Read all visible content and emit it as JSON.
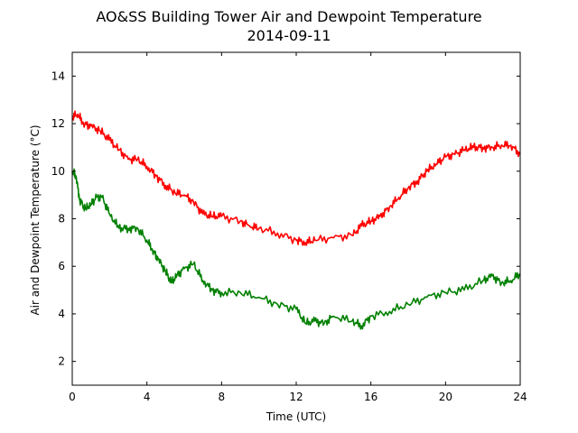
{
  "chart_data": {
    "type": "line",
    "title": "AO&SS Building Tower Air and Dewpoint Temperature",
    "subtitle": "2014-09-11",
    "xlabel": "Time (UTC)",
    "ylabel": "Air and Dewpoint Temperature (°C)",
    "xlim": [
      0,
      24
    ],
    "ylim": [
      1,
      15
    ],
    "xticks": [
      0,
      4,
      8,
      12,
      16,
      20,
      24
    ],
    "yticks": [
      2,
      4,
      6,
      8,
      10,
      12,
      14
    ],
    "grid": false,
    "legend": "none",
    "series": [
      {
        "color": "#ff0000",
        "x": [
          0,
          0.3,
          0.6,
          1,
          1.5,
          2,
          2.5,
          3,
          3.5,
          4,
          4.5,
          5,
          5.5,
          6,
          6.5,
          7,
          7.5,
          8,
          9,
          9.5,
          10,
          11,
          12,
          12.5,
          13,
          14,
          15,
          15.5,
          16,
          16.5,
          17,
          17.5,
          18,
          18.5,
          19,
          19.5,
          20,
          20.5,
          21,
          21.5,
          22,
          22.5,
          23,
          23.5,
          24
        ],
        "y": [
          12.3,
          12.4,
          12.0,
          11.9,
          11.7,
          11.3,
          10.9,
          10.5,
          10.5,
          10.2,
          9.8,
          9.4,
          9.1,
          9.0,
          8.7,
          8.2,
          8.1,
          8.1,
          7.9,
          7.7,
          7.6,
          7.4,
          7.1,
          7.0,
          7.1,
          7.2,
          7.3,
          7.7,
          7.9,
          8.1,
          8.5,
          8.9,
          9.3,
          9.6,
          10.0,
          10.3,
          10.6,
          10.7,
          10.9,
          11.0,
          11.0,
          11.0,
          11.1,
          11.1,
          10.7
        ]
      },
      {
        "color": "#008000",
        "x": [
          0,
          0.2,
          0.4,
          0.7,
          1,
          1.3,
          1.6,
          2,
          2.5,
          3,
          3.5,
          4,
          4.3,
          4.6,
          5,
          5.3,
          5.6,
          6,
          6.5,
          7,
          7.5,
          8,
          9,
          10,
          11,
          12,
          12.5,
          13,
          13.5,
          14,
          15,
          15.5,
          16,
          17,
          18,
          19,
          20,
          21,
          22,
          22.5,
          23,
          23.5,
          24
        ],
        "y": [
          10.0,
          9.8,
          8.8,
          8.4,
          8.6,
          8.9,
          8.9,
          8.2,
          7.6,
          7.6,
          7.6,
          7.1,
          6.7,
          6.3,
          5.8,
          5.3,
          5.6,
          5.9,
          6.1,
          5.4,
          5.0,
          4.9,
          4.9,
          4.7,
          4.4,
          4.2,
          3.6,
          3.7,
          3.6,
          3.9,
          3.7,
          3.5,
          3.9,
          4.1,
          4.4,
          4.7,
          4.9,
          5.0,
          5.4,
          5.6,
          5.3,
          5.4,
          5.7
        ]
      }
    ]
  }
}
